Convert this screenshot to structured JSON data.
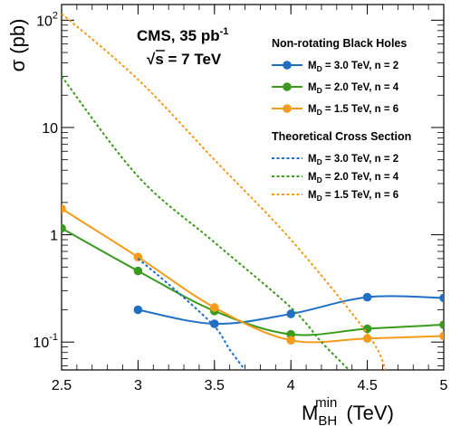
{
  "chart_data": {
    "type": "line",
    "title": "",
    "xlabel": "M_BH^min (TeV)",
    "xlabel_main": "M",
    "xlabel_sub": "BH",
    "xlabel_sup": "min",
    "xlabel_unit": "(TeV)",
    "ylabel": "σ (pb)",
    "xlim": [
      2.5,
      5.0
    ],
    "ylim": [
      0.055,
      140
    ],
    "yscale": "log",
    "x_ticks": [
      "2.5",
      "3",
      "3.5",
      "4",
      "4.5",
      "5"
    ],
    "x_tick_values": [
      2.5,
      3.0,
      3.5,
      4.0,
      4.5,
      5.0
    ],
    "y_ticks": [
      {
        "value": 100,
        "base": "10",
        "exp": "2"
      },
      {
        "value": 10,
        "base": "10",
        "exp": ""
      },
      {
        "value": 1,
        "base": "1",
        "exp": ""
      },
      {
        "value": 0.1,
        "base": "10",
        "exp": "-1"
      }
    ],
    "annotations": {
      "experiment": "CMS, 35 pb",
      "experiment_sup": "-1",
      "energy_root": "√",
      "energy": "s = 7 TeV"
    },
    "legend": {
      "position": "top-right",
      "group1_title": "Non-rotating Black Holes",
      "group2_title": "Theoretical Cross Section"
    },
    "series": [
      {
        "name": "M_D = 3.0 TeV, n = 2",
        "label_main": "M",
        "label_sub": "D",
        "label_rest": " = 3.0 TeV, n = 2",
        "group": "measured",
        "color": "#1f6fc5",
        "x": [
          3.0,
          3.5,
          4.0,
          4.5,
          5.0
        ],
        "y": [
          0.2,
          0.148,
          0.183,
          0.262,
          0.258
        ]
      },
      {
        "name": "M_D = 2.0 TeV, n = 4",
        "label_main": "M",
        "label_sub": "D",
        "label_rest": " = 2.0 TeV, n = 4",
        "group": "measured",
        "color": "#3a9a1c",
        "x": [
          2.5,
          3.0,
          3.5,
          4.0,
          4.5,
          5.0
        ],
        "y": [
          1.15,
          0.46,
          0.195,
          0.118,
          0.133,
          0.145
        ]
      },
      {
        "name": "M_D = 1.5 TeV, n = 6",
        "label_main": "M",
        "label_sub": "D",
        "label_rest": " = 1.5 TeV, n = 6",
        "group": "measured",
        "color": "#f59b1c",
        "x": [
          2.5,
          3.0,
          3.5,
          4.0,
          4.5,
          5.0
        ],
        "y": [
          1.75,
          0.62,
          0.21,
          0.104,
          0.108,
          0.114
        ]
      },
      {
        "name": "M_D = 3.0 TeV, n = 2",
        "label_main": "M",
        "label_sub": "D",
        "label_rest": " = 3.0 TeV, n = 2",
        "group": "theory",
        "color": "#1f6fc5",
        "x": [
          3.0,
          3.25,
          3.5,
          3.6,
          3.7
        ],
        "y": [
          0.6,
          0.3,
          0.14,
          0.085,
          0.055
        ]
      },
      {
        "name": "M_D = 2.0 TeV, n = 4",
        "label_main": "M",
        "label_sub": "D",
        "label_rest": " = 2.0 TeV, n = 4",
        "group": "theory",
        "color": "#3a9a1c",
        "x": [
          2.5,
          3.0,
          3.5,
          4.0,
          4.2,
          4.38
        ],
        "y": [
          30,
          3.5,
          0.85,
          0.21,
          0.1,
          0.055
        ]
      },
      {
        "name": "M_D = 1.5 TeV, n = 6",
        "label_main": "M",
        "label_sub": "D",
        "label_rest": " = 1.5 TeV, n = 6",
        "group": "theory",
        "color": "#f59b1c",
        "x": [
          2.5,
          3.0,
          3.5,
          4.0,
          4.5,
          4.62
        ],
        "y": [
          115,
          28,
          5.0,
          0.9,
          0.12,
          0.055
        ]
      }
    ]
  }
}
